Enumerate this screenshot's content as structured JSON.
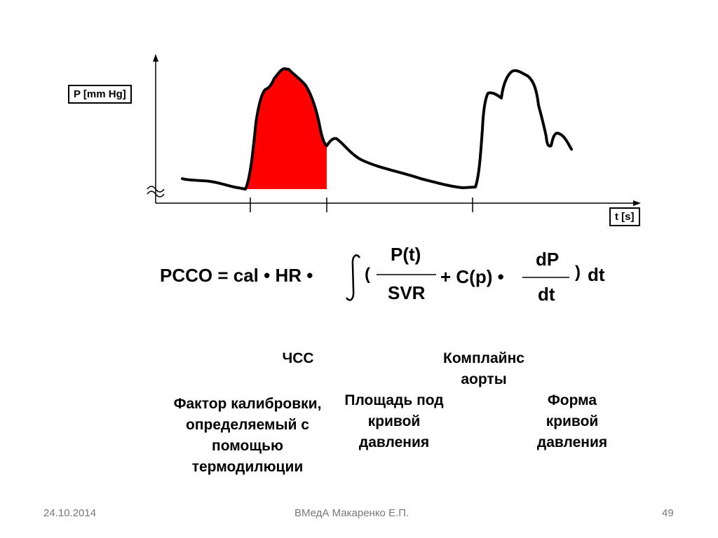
{
  "axes": {
    "y_label": "P [mm Hg]",
    "x_label": "t [s]"
  },
  "formula": {
    "lhs": "PCCO = cal • HR •",
    "open_paren": "(",
    "numerator_1": "P(t)",
    "denominator_1": "SVR",
    "plus_term": "+ C(p) •",
    "numerator_2": "dP",
    "denominator_2": "dt",
    "close_paren": ")",
    "dt": "dt"
  },
  "annotations": {
    "hr": "ЧСС",
    "compliance": "Комплайнс аорты",
    "calibration": "Фактор калибровки, определяемый с помощью термодилюции",
    "area": "Площадь под кривой давления",
    "shape": "Форма кривой давления"
  },
  "footer": {
    "date": "24.10.2014",
    "author": "ВМедА Макаренко Е.П.",
    "page": "49"
  },
  "colors": {
    "area_fill": "#ff0000",
    "curve": "#000000"
  }
}
